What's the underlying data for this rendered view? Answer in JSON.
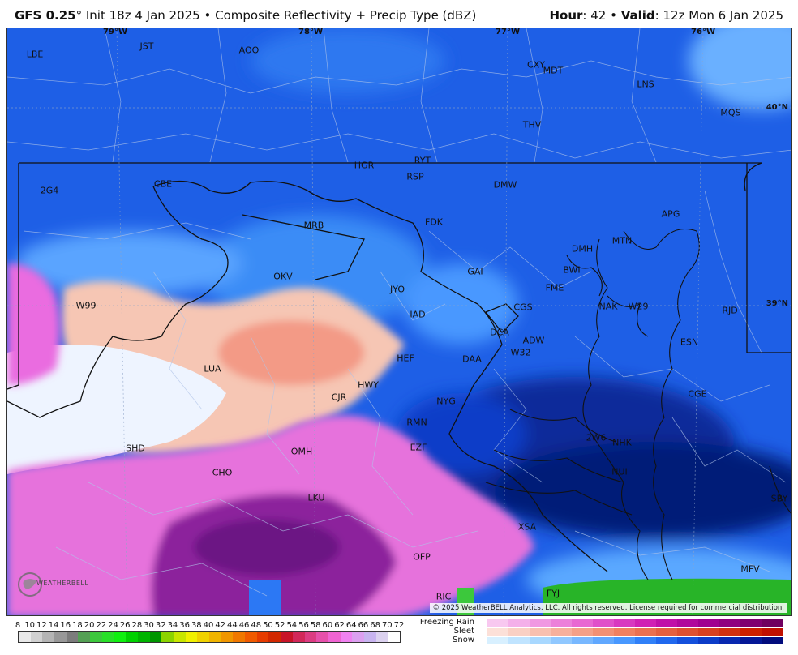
{
  "header": {
    "model": "GFS 0.25",
    "deg": "°",
    "init": " Init 18z 4 Jan 2025",
    "bullet": " • ",
    "product": "Composite Reflectivity + Precip Type (dBZ)",
    "hour_label": "Hour",
    "hour_value": ": 42",
    "valid_label": "Valid",
    "valid_value": ": 12z Mon 6 Jan 2025"
  },
  "longitudes": [
    {
      "label": "79°W"
    },
    {
      "label": "78°W"
    },
    {
      "label": "77°W"
    },
    {
      "label": "76°W"
    }
  ],
  "latitudes": [
    {
      "label": "40°N"
    },
    {
      "label": "39°N"
    }
  ],
  "stations": [
    {
      "id": "LBE"
    },
    {
      "id": "JST"
    },
    {
      "id": "AOO"
    },
    {
      "id": "CXY"
    },
    {
      "id": "MDT"
    },
    {
      "id": "LNS"
    },
    {
      "id": "MQS"
    },
    {
      "id": "THV"
    },
    {
      "id": "HGR"
    },
    {
      "id": "RYT"
    },
    {
      "id": "RSP"
    },
    {
      "id": "DMW"
    },
    {
      "id": "2G4"
    },
    {
      "id": "CBE"
    },
    {
      "id": "FDK"
    },
    {
      "id": "APG"
    },
    {
      "id": "MRB"
    },
    {
      "id": "DMH"
    },
    {
      "id": "MTN"
    },
    {
      "id": "BWI"
    },
    {
      "id": "GAI"
    },
    {
      "id": "OKV"
    },
    {
      "id": "FME"
    },
    {
      "id": "JYO"
    },
    {
      "id": "W99"
    },
    {
      "id": "NAK"
    },
    {
      "id": "W29"
    },
    {
      "id": "RJD"
    },
    {
      "id": "IAD"
    },
    {
      "id": "CGS"
    },
    {
      "id": "DCA"
    },
    {
      "id": "ADW"
    },
    {
      "id": "ESN"
    },
    {
      "id": "W32"
    },
    {
      "id": "HEF"
    },
    {
      "id": "DAA"
    },
    {
      "id": "LUA"
    },
    {
      "id": "HWY"
    },
    {
      "id": "CGE"
    },
    {
      "id": "CJR"
    },
    {
      "id": "NYG"
    },
    {
      "id": "RMN"
    },
    {
      "id": "2W6"
    },
    {
      "id": "NHK"
    },
    {
      "id": "EZF"
    },
    {
      "id": "SHD"
    },
    {
      "id": "OMH"
    },
    {
      "id": "NUI"
    },
    {
      "id": "CHO"
    },
    {
      "id": "LKU"
    },
    {
      "id": "SBY"
    },
    {
      "id": "XSA"
    },
    {
      "id": "OFP"
    },
    {
      "id": "MFV"
    },
    {
      "id": "RIC"
    },
    {
      "id": "FYJ"
    }
  ],
  "copyright": "© 2025 WeatherBELL Analytics, LLC. All rights reserved. License required for commercial distribution.",
  "logo": "WEATHERBELL",
  "legend": {
    "ticks": [
      "8",
      "10",
      "12",
      "14",
      "16",
      "18",
      "20",
      "22",
      "24",
      "26",
      "28",
      "30",
      "32",
      "34",
      "36",
      "38",
      "40",
      "42",
      "44",
      "46",
      "48",
      "50",
      "52",
      "54",
      "56",
      "58",
      "60",
      "62",
      "64",
      "66",
      "68",
      "70",
      "72"
    ],
    "colors": [
      "#e8e8e8",
      "#d0d0d0",
      "#b4b4b4",
      "#989898",
      "#7c7c7c",
      "#54a054",
      "#3cc83c",
      "#28e028",
      "#10f010",
      "#00d200",
      "#00b400",
      "#009600",
      "#8cd400",
      "#c8e600",
      "#f0f000",
      "#f0d200",
      "#f0b400",
      "#f09600",
      "#f07800",
      "#f05a00",
      "#e63c00",
      "#d22800",
      "#c81428",
      "#d2285a",
      "#dc3c82",
      "#e650aa",
      "#f064d2",
      "#f082f0",
      "#dca0f0",
      "#c8b4f0",
      "#dcd2f0",
      "#ffffff"
    ],
    "ptypes": [
      {
        "label": "Freezing Rain",
        "colors": [
          "#f8c8f0",
          "#f4b0ea",
          "#f098e2",
          "#ec80da",
          "#e868d2",
          "#e050ca",
          "#d838c0",
          "#d020b4",
          "#c010a8",
          "#b0089c",
          "#a00090",
          "#900080",
          "#800070",
          "#700060"
        ]
      },
      {
        "label": "Sleet",
        "colors": [
          "#fce0d8",
          "#fad0c4",
          "#f8c0b0",
          "#f6b09c",
          "#f4a088",
          "#f29074",
          "#f08060",
          "#ea7050",
          "#e46040",
          "#de5030",
          "#d84020",
          "#d23010",
          "#cc2000",
          "#c01000"
        ]
      },
      {
        "label": "Snow",
        "colors": [
          "#d8f0ff",
          "#c0e4ff",
          "#a8d8ff",
          "#90c8ff",
          "#78b8ff",
          "#60a8ff",
          "#4898ff",
          "#3080f8",
          "#2068ee",
          "#1450dc",
          "#0c3cc8",
          "#0828b0",
          "#041896",
          "#020c7c"
        ]
      }
    ]
  }
}
